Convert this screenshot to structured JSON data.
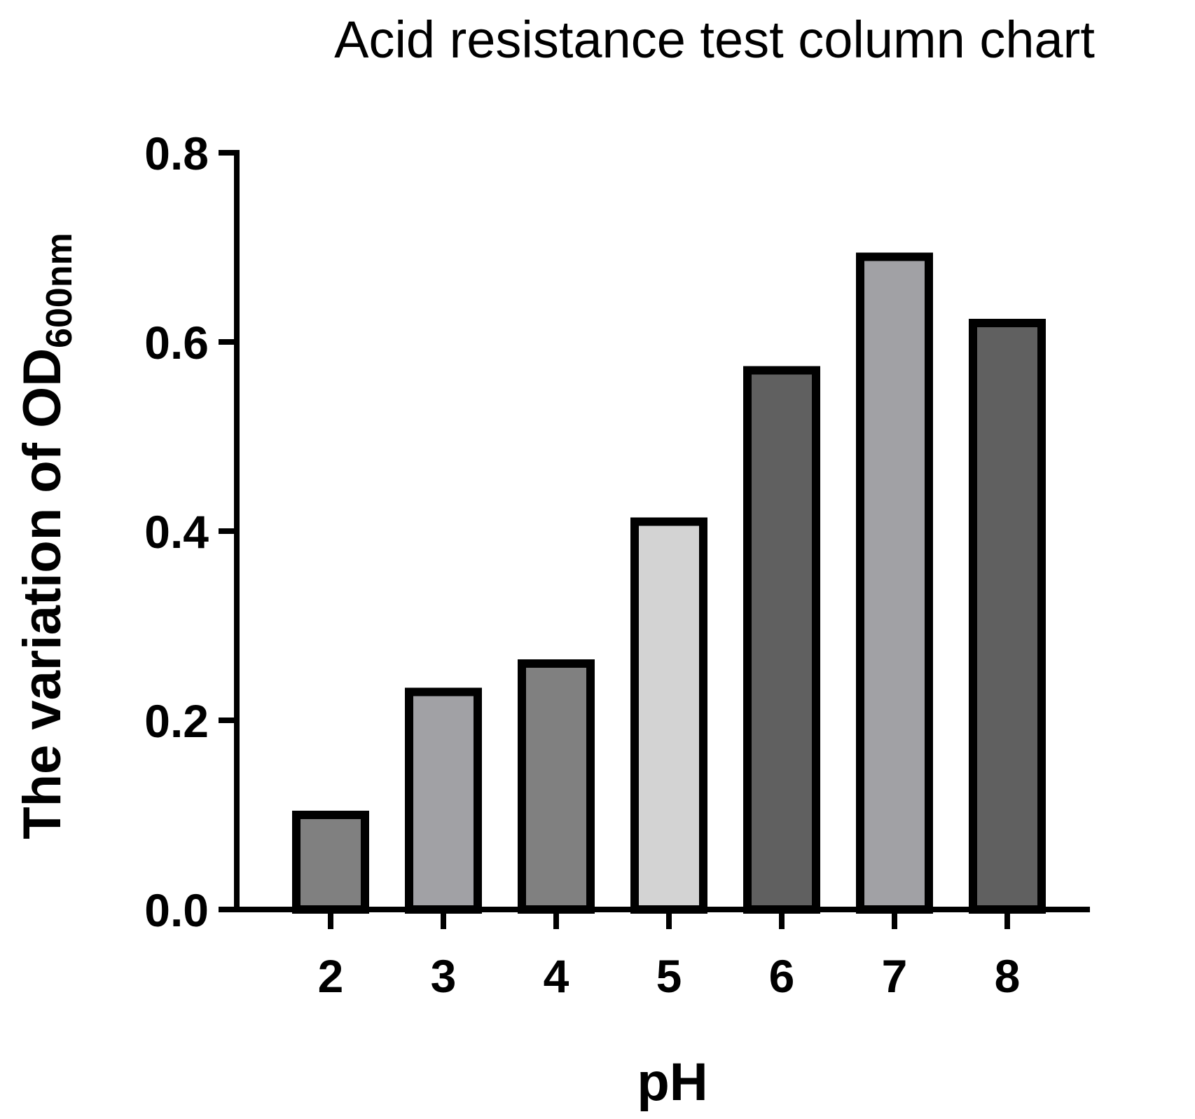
{
  "chart_data": {
    "type": "bar",
    "title": "Acid resistance test column chart",
    "xlabel": "pH",
    "ylabel": {
      "main": "The variation of OD",
      "subscript": "600nm"
    },
    "categories": [
      "2",
      "3",
      "4",
      "5",
      "6",
      "7",
      "8"
    ],
    "values": [
      0.1,
      0.23,
      0.26,
      0.41,
      0.57,
      0.69,
      0.62
    ],
    "bar_colors": [
      "#808080",
      "#a1a1a5",
      "#808080",
      "#d3d3d3",
      "#606060",
      "#a1a1a5",
      "#606060"
    ],
    "bar_edge_color": "#000000",
    "ylim": [
      0,
      0.8
    ],
    "yticks": [
      "0.0",
      "0.2",
      "0.4",
      "0.6",
      "0.8"
    ],
    "ytick_values": [
      0,
      0.2,
      0.4,
      0.6,
      0.8
    ],
    "grid": false,
    "legend": "none"
  }
}
